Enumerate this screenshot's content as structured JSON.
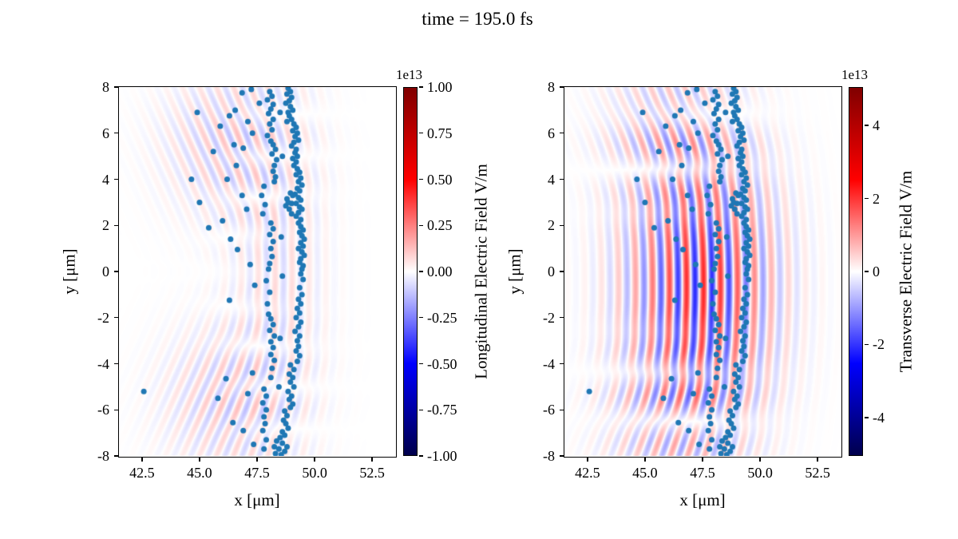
{
  "title": "time = 195.0 fs",
  "colors": {
    "scatter": "#1f77b4",
    "spine": "#000000",
    "background": "#ffffff",
    "cmap": "seismic",
    "cmap_stops": [
      "#00004c",
      "#0000ff",
      "#ffffff",
      "#ff0000",
      "#800000"
    ]
  },
  "chart_data": {
    "type": "heatmap",
    "figure_title": "time = 195.0 fs",
    "description": "Two field maps (seismic colormap) with identical overlaid particle scatter",
    "panels": [
      {
        "name": "longitudinal",
        "xlabel": "x [μm]",
        "ylabel": "y [μm]",
        "xlim": [
          41.5,
          53.5
        ],
        "ylim": [
          -8,
          8
        ],
        "xticks": [
          {
            "v": 42.5,
            "label": "42.5"
          },
          {
            "v": 45.0,
            "label": "45.0"
          },
          {
            "v": 47.5,
            "label": "47.5"
          },
          {
            "v": 50.0,
            "label": "50.0"
          },
          {
            "v": 52.5,
            "label": "52.5"
          }
        ],
        "yticks": [
          {
            "v": 8,
            "label": "8"
          },
          {
            "v": 6,
            "label": "6"
          },
          {
            "v": 4,
            "label": "4"
          },
          {
            "v": 2,
            "label": "2"
          },
          {
            "v": 0,
            "label": "0"
          },
          {
            "v": -2,
            "label": "-2"
          },
          {
            "v": -4,
            "label": "-4"
          },
          {
            "v": -6,
            "label": "-6"
          },
          {
            "v": -8,
            "label": "-8"
          }
        ],
        "colorbar": {
          "label": "Longitudinal Electric Field V/m",
          "offset": "1e13",
          "range": [
            -1,
            1
          ],
          "range_units": "1e13 V/m",
          "ticks": [
            {
              "v": 1.0,
              "label": "1.00"
            },
            {
              "v": 0.75,
              "label": "0.75"
            },
            {
              "v": 0.5,
              "label": "0.50"
            },
            {
              "v": 0.25,
              "label": "0.25"
            },
            {
              "v": 0.0,
              "label": "0.00"
            },
            {
              "v": -0.25,
              "label": "-0.25"
            },
            {
              "v": -0.5,
              "label": "-0.50"
            },
            {
              "v": -0.75,
              "label": "-0.75"
            },
            {
              "v": -1.0,
              "label": "-1.00"
            }
          ]
        },
        "field_waves_normalized": [
          {
            "amp": 0.11,
            "wavelength": 0.74,
            "tilt": 0.45,
            "curv": 0,
            "cx": 46.3,
            "sx": 1.9,
            "cy": 5.6,
            "sy": 2.2
          },
          {
            "amp": 0.11,
            "wavelength": 0.74,
            "tilt": -0.45,
            "curv": 0,
            "cx": 46.3,
            "sx": 1.9,
            "cy": -5.6,
            "sy": 2.2
          },
          {
            "amp": 0.07,
            "wavelength": 0.74,
            "tilt": 0,
            "curv": 0.004,
            "cx": 48.4,
            "sx": 1.4,
            "cy": 0,
            "sy": 5.5
          }
        ]
      },
      {
        "name": "transverse",
        "xlabel": "x [μm]",
        "ylabel": "y [μm]",
        "xlim": [
          41.5,
          53.5
        ],
        "ylim": [
          -8,
          8
        ],
        "xticks": [
          {
            "v": 42.5,
            "label": "42.5"
          },
          {
            "v": 45.0,
            "label": "45.0"
          },
          {
            "v": 47.5,
            "label": "47.5"
          },
          {
            "v": 50.0,
            "label": "50.0"
          },
          {
            "v": 52.5,
            "label": "52.5"
          }
        ],
        "yticks": [
          {
            "v": 8,
            "label": "8"
          },
          {
            "v": 6,
            "label": "6"
          },
          {
            "v": 4,
            "label": "4"
          },
          {
            "v": 2,
            "label": "2"
          },
          {
            "v": 0,
            "label": "0"
          },
          {
            "v": -2,
            "label": "-2"
          },
          {
            "v": -4,
            "label": "-4"
          },
          {
            "v": -6,
            "label": "-6"
          },
          {
            "v": -8,
            "label": "-8"
          }
        ],
        "colorbar": {
          "label": "Transverse Electric Field V/m",
          "offset": "1e13",
          "range": [
            -5.05,
            5.05
          ],
          "range_units": "1e13 V/m",
          "ticks": [
            {
              "v": 4,
              "label": "4"
            },
            {
              "v": 2,
              "label": "2"
            },
            {
              "v": 0,
              "label": "0"
            },
            {
              "v": -2,
              "label": "-2"
            },
            {
              "v": -4,
              "label": "-4"
            }
          ]
        },
        "field_waves_normalized": [
          {
            "amp": 0.42,
            "wavelength": 0.74,
            "tilt": 0,
            "curv": 0.012,
            "cx": 47.4,
            "sx": 2.1,
            "cy": -0.6,
            "sy": 3.8
          },
          {
            "amp": 0.14,
            "wavelength": 0.74,
            "tilt": 0.45,
            "curv": 0,
            "cx": 46.2,
            "sx": 1.9,
            "cy": 6.2,
            "sy": 1.9
          },
          {
            "amp": 0.14,
            "wavelength": 0.74,
            "tilt": -0.45,
            "curv": 0,
            "cx": 46.2,
            "sx": 1.9,
            "cy": -6.4,
            "sy": 1.9
          }
        ]
      }
    ],
    "scatter_marker": {
      "radius_px": 3.5,
      "color": "#1f77b4"
    },
    "scatter_points": [
      [
        48.85,
        7.95
      ],
      [
        48.95,
        7.8
      ],
      [
        48.8,
        7.7
      ],
      [
        49.0,
        7.55
      ],
      [
        48.9,
        7.4
      ],
      [
        48.75,
        7.3
      ],
      [
        48.95,
        7.15
      ],
      [
        49.05,
        7.0
      ],
      [
        48.85,
        6.9
      ],
      [
        48.9,
        6.75
      ],
      [
        49.0,
        6.6
      ],
      [
        48.8,
        6.5
      ],
      [
        49.1,
        6.4
      ],
      [
        49.2,
        6.25
      ],
      [
        49.05,
        6.1
      ],
      [
        49.25,
        6.0
      ],
      [
        49.15,
        5.85
      ],
      [
        49.3,
        5.7
      ],
      [
        49.1,
        5.6
      ],
      [
        49.0,
        5.45
      ],
      [
        49.2,
        5.3
      ],
      [
        49.15,
        5.15
      ],
      [
        49.25,
        5.0
      ],
      [
        49.05,
        4.9
      ],
      [
        49.2,
        4.75
      ],
      [
        49.1,
        4.6
      ],
      [
        49.25,
        4.45
      ],
      [
        49.35,
        4.3
      ],
      [
        49.2,
        4.2
      ],
      [
        49.4,
        4.05
      ],
      [
        49.3,
        3.9
      ],
      [
        49.45,
        3.75
      ],
      [
        49.25,
        3.6
      ],
      [
        49.35,
        3.5
      ],
      [
        49.15,
        3.35
      ],
      [
        49.3,
        3.2
      ],
      [
        49.4,
        3.1
      ],
      [
        49.2,
        2.95
      ],
      [
        49.35,
        2.8
      ],
      [
        49.45,
        2.7
      ],
      [
        49.3,
        2.55
      ],
      [
        49.2,
        2.4
      ],
      [
        49.4,
        2.25
      ],
      [
        49.3,
        2.1
      ],
      [
        48.95,
        3.4
      ],
      [
        48.8,
        3.15
      ],
      [
        49.0,
        2.95
      ],
      [
        48.9,
        2.7
      ],
      [
        49.05,
        3.3
      ],
      [
        48.75,
        2.85
      ],
      [
        49.0,
        2.5
      ],
      [
        48.85,
        3.0
      ],
      [
        49.4,
        1.95
      ],
      [
        49.5,
        1.8
      ],
      [
        49.35,
        1.7
      ],
      [
        49.45,
        1.55
      ],
      [
        49.55,
        1.4
      ],
      [
        49.4,
        1.25
      ],
      [
        49.5,
        1.1
      ],
      [
        49.3,
        1.0
      ],
      [
        49.45,
        0.85
      ],
      [
        49.55,
        0.7
      ],
      [
        49.4,
        0.55
      ],
      [
        49.35,
        0.4
      ],
      [
        49.5,
        0.25
      ],
      [
        49.45,
        0.1
      ],
      [
        49.4,
        -0.1
      ],
      [
        49.5,
        -0.35
      ],
      [
        49.35,
        -0.7
      ],
      [
        49.45,
        -1.0
      ],
      [
        49.3,
        -1.2
      ],
      [
        49.4,
        -1.4
      ],
      [
        49.25,
        -1.6
      ],
      [
        49.35,
        -1.8
      ],
      [
        49.2,
        -2.0
      ],
      [
        49.4,
        -2.2
      ],
      [
        49.3,
        -2.4
      ],
      [
        49.15,
        -2.6
      ],
      [
        49.35,
        -2.8
      ],
      [
        49.25,
        -3.0
      ],
      [
        49.3,
        -3.25
      ],
      [
        49.2,
        -3.45
      ],
      [
        49.35,
        -3.65
      ],
      [
        49.25,
        -3.9
      ],
      [
        48.95,
        -4.05
      ],
      [
        49.1,
        -4.25
      ],
      [
        48.9,
        -4.45
      ],
      [
        49.05,
        -4.6
      ],
      [
        48.95,
        -4.8
      ],
      [
        49.1,
        -5.0
      ],
      [
        48.85,
        -5.2
      ],
      [
        49.0,
        -5.4
      ],
      [
        48.9,
        -5.55
      ],
      [
        49.05,
        -5.75
      ],
      [
        48.95,
        -5.9
      ],
      [
        48.7,
        -6.05
      ],
      [
        48.8,
        -6.25
      ],
      [
        48.65,
        -6.45
      ],
      [
        48.75,
        -6.6
      ],
      [
        48.85,
        -6.8
      ],
      [
        48.6,
        -6.95
      ],
      [
        48.7,
        -7.1
      ],
      [
        48.5,
        -7.2
      ],
      [
        48.35,
        -7.35
      ],
      [
        48.6,
        -7.45
      ],
      [
        48.25,
        -7.6
      ],
      [
        48.45,
        -7.7
      ],
      [
        48.7,
        -7.8
      ],
      [
        48.3,
        -7.9
      ],
      [
        48.55,
        -7.95
      ],
      [
        48.8,
        -7.6
      ],
      [
        48.05,
        7.8
      ],
      [
        48.15,
        7.6
      ],
      [
        47.95,
        7.45
      ],
      [
        48.2,
        7.25
      ],
      [
        48.1,
        7.05
      ],
      [
        48.0,
        6.85
      ],
      [
        48.2,
        6.6
      ],
      [
        48.05,
        6.4
      ],
      [
        48.15,
        6.15
      ],
      [
        47.95,
        5.9
      ],
      [
        48.1,
        5.65
      ],
      [
        48.2,
        5.5
      ],
      [
        48.3,
        5.3
      ],
      [
        48.15,
        5.1
      ],
      [
        48.35,
        4.85
      ],
      [
        48.25,
        4.6
      ],
      [
        48.2,
        4.35
      ],
      [
        48.3,
        4.1
      ],
      [
        48.25,
        3.9
      ],
      [
        47.8,
        3.7
      ],
      [
        47.7,
        3.3
      ],
      [
        47.85,
        2.9
      ],
      [
        47.75,
        2.5
      ],
      [
        48.1,
        2.1
      ],
      [
        48.2,
        1.85
      ],
      [
        48.05,
        1.6
      ],
      [
        48.2,
        1.3
      ],
      [
        48.1,
        1.0
      ],
      [
        48.15,
        0.65
      ],
      [
        48.05,
        0.35
      ],
      [
        48.0,
        0.1
      ],
      [
        47.9,
        -0.4
      ],
      [
        48.05,
        -0.9
      ],
      [
        47.95,
        -1.4
      ],
      [
        48.0,
        -1.85
      ],
      [
        48.1,
        -2.05
      ],
      [
        48.2,
        -2.3
      ],
      [
        48.05,
        -2.55
      ],
      [
        48.25,
        -2.8
      ],
      [
        48.1,
        -3.05
      ],
      [
        48.2,
        -3.3
      ],
      [
        48.1,
        -3.6
      ],
      [
        48.25,
        -3.85
      ],
      [
        48.15,
        -4.2
      ],
      [
        48.1,
        -4.6
      ],
      [
        47.8,
        -5.1
      ],
      [
        47.9,
        -5.4
      ],
      [
        47.75,
        -5.7
      ],
      [
        47.9,
        -6.0
      ],
      [
        47.8,
        -6.3
      ],
      [
        47.85,
        -6.6
      ],
      [
        47.75,
        -6.9
      ],
      [
        47.9,
        -7.3
      ],
      [
        47.8,
        -7.7
      ],
      [
        42.58,
        -5.2
      ],
      [
        44.9,
        6.9
      ],
      [
        45.9,
        6.3
      ],
      [
        46.55,
        7.0
      ],
      [
        46.85,
        7.75
      ],
      [
        47.25,
        7.9
      ],
      [
        46.3,
        6.75
      ],
      [
        47.1,
        6.5
      ],
      [
        47.3,
        6.0
      ],
      [
        46.5,
        5.5
      ],
      [
        45.6,
        5.2
      ],
      [
        46.9,
        5.35
      ],
      [
        46.6,
        4.6
      ],
      [
        46.2,
        4.0
      ],
      [
        44.65,
        4.0
      ],
      [
        45.0,
        3.0
      ],
      [
        46.85,
        3.3
      ],
      [
        47.05,
        2.7
      ],
      [
        46.0,
        2.2
      ],
      [
        45.4,
        1.9
      ],
      [
        46.35,
        1.4
      ],
      [
        46.65,
        0.95
      ],
      [
        47.2,
        0.3
      ],
      [
        46.3,
        -1.25
      ],
      [
        47.4,
        -0.6
      ],
      [
        46.15,
        -4.65
      ],
      [
        45.8,
        -5.5
      ],
      [
        46.45,
        -6.55
      ],
      [
        47.1,
        -5.3
      ],
      [
        46.9,
        -6.9
      ],
      [
        47.35,
        -7.5
      ],
      [
        47.3,
        -4.4
      ],
      [
        48.55,
        1.5
      ],
      [
        48.6,
        -0.2
      ],
      [
        48.5,
        -2.9
      ],
      [
        48.6,
        5.0
      ],
      [
        48.5,
        6.9
      ],
      [
        48.45,
        -5.0
      ],
      [
        47.6,
        7.3
      ]
    ]
  }
}
